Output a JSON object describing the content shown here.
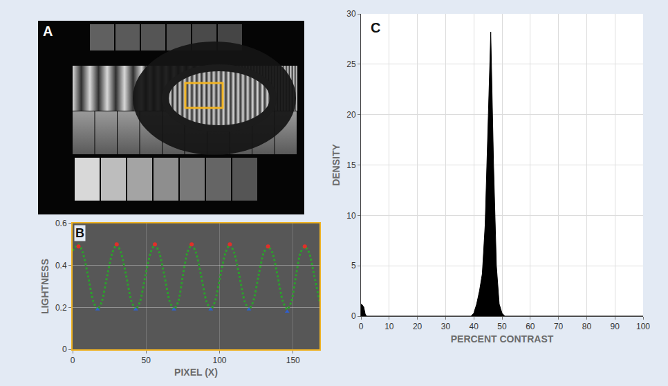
{
  "panel_labels": [
    "A",
    "B",
    "C"
  ],
  "chart_data": [
    {
      "type": "line",
      "xlabel": "PIXEL (X)",
      "ylabel": "LIGHTNESS",
      "xlim": [
        0,
        168
      ],
      "xticks": [
        0,
        50,
        100,
        150
      ],
      "ylim": [
        0,
        0.6
      ],
      "yticks": [
        0,
        0.2,
        0.4,
        0.6
      ],
      "grid": true,
      "x": [
        0,
        4,
        7,
        10.5,
        14,
        17,
        20,
        23.5,
        27,
        30,
        33,
        36.5,
        40,
        43,
        46,
        49.5,
        53,
        56,
        59,
        62.5,
        66,
        69,
        72,
        75,
        78,
        81,
        84,
        87.5,
        91,
        94,
        97,
        100.5,
        104,
        107,
        110,
        113.5,
        117,
        120,
        123,
        126.5,
        130,
        133,
        136,
        139.5,
        143,
        146,
        149,
        152,
        155,
        158,
        161,
        164.5,
        168
      ],
      "series": [
        {
          "type": "line",
          "color": "#2ca02c",
          "line_style": "dotted",
          "values": [
            0.47,
            0.5,
            0.46,
            0.35,
            0.23,
            0.19,
            0.23,
            0.35,
            0.46,
            0.5,
            0.46,
            0.35,
            0.23,
            0.19,
            0.23,
            0.35,
            0.46,
            0.5,
            0.46,
            0.35,
            0.23,
            0.19,
            0.23,
            0.35,
            0.46,
            0.5,
            0.46,
            0.35,
            0.23,
            0.19,
            0.23,
            0.35,
            0.46,
            0.5,
            0.46,
            0.35,
            0.23,
            0.19,
            0.23,
            0.35,
            0.46,
            0.49,
            0.46,
            0.35,
            0.23,
            0.19,
            0.23,
            0.35,
            0.46,
            0.49,
            0.46,
            0.35,
            0.23
          ]
        },
        {
          "type": "scatter",
          "color": "#e0302a",
          "marker": "circle",
          "x": [
            4,
            30,
            56,
            81,
            107,
            133,
            158
          ],
          "values": [
            0.49,
            0.5,
            0.5,
            0.5,
            0.5,
            0.49,
            0.49
          ]
        },
        {
          "type": "scatter",
          "color": "#2f5fd0",
          "marker": "triangle-up",
          "x": [
            17,
            43,
            69,
            94,
            120,
            146
          ],
          "values": [
            0.19,
            0.19,
            0.19,
            0.19,
            0.19,
            0.18
          ]
        }
      ]
    },
    {
      "type": "area",
      "xlabel": "PERCENT CONTRAST",
      "ylabel": "DENSITY",
      "xlim": [
        0,
        100
      ],
      "xticks": [
        0,
        10,
        20,
        30,
        40,
        50,
        60,
        70,
        80,
        90,
        100
      ],
      "ylim": [
        0,
        30
      ],
      "yticks": [
        0,
        5,
        10,
        15,
        20,
        25,
        30
      ],
      "grid": true,
      "color": "#000000",
      "x": [
        0,
        0.5,
        1,
        1.5,
        2,
        39,
        40,
        41,
        42,
        43,
        44,
        45,
        46,
        47,
        48,
        49,
        50,
        51,
        100
      ],
      "values": [
        1.2,
        1.1,
        0.9,
        0.2,
        0,
        0,
        0.3,
        1.2,
        2.5,
        4.2,
        9,
        19,
        28.2,
        15,
        5,
        1.2,
        0.3,
        0,
        0
      ]
    }
  ]
}
